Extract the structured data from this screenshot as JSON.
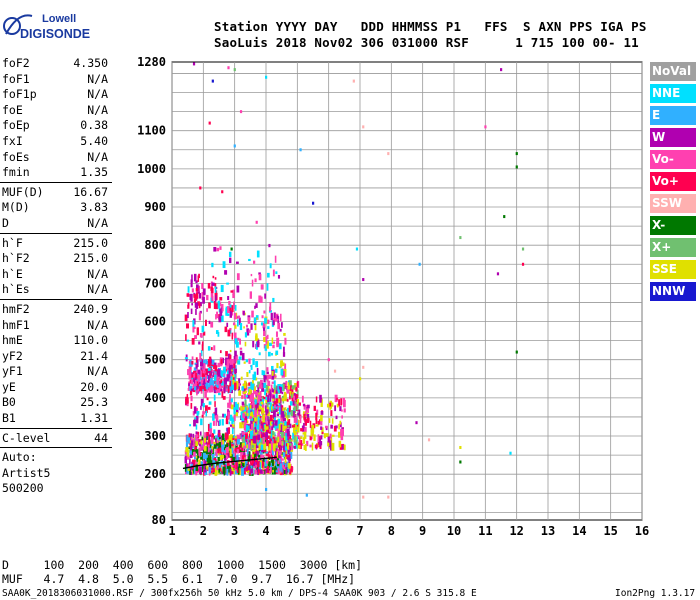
{
  "logo": {
    "top": "Lowell",
    "bottom": "DIGISONDE"
  },
  "header": {
    "line1": "Station YYYY DAY   DDD HHMMSS P1   FFS  S AXN PPS IGA PS",
    "line2": "SaoLuis 2018 Nov02 306 031000 RSF      1 715 100 00- 11"
  },
  "params": {
    "group1": [
      {
        "name": "foF2",
        "value": "4.350"
      },
      {
        "name": "foF1",
        "value": "N/A"
      },
      {
        "name": "foF1p",
        "value": "N/A"
      },
      {
        "name": "foE",
        "value": "N/A"
      },
      {
        "name": "foEp",
        "value": "0.38"
      },
      {
        "name": "fxI",
        "value": "5.40"
      },
      {
        "name": "foEs",
        "value": "N/A"
      },
      {
        "name": "fmin",
        "value": "1.35"
      }
    ],
    "group2": [
      {
        "name": "MUF(D)",
        "value": "16.67"
      },
      {
        "name": "M(D)",
        "value": "3.83"
      },
      {
        "name": "D",
        "value": "N/A"
      }
    ],
    "group3": [
      {
        "name": "h`F",
        "value": "215.0"
      },
      {
        "name": "h`F2",
        "value": "215.0"
      },
      {
        "name": "h`E",
        "value": "N/A"
      },
      {
        "name": "h`Es",
        "value": "N/A"
      }
    ],
    "group4": [
      {
        "name": "hmF2",
        "value": "240.9"
      },
      {
        "name": "hmF1",
        "value": "N/A"
      },
      {
        "name": "hmE",
        "value": "110.0"
      },
      {
        "name": "yF2",
        "value": "21.4"
      },
      {
        "name": "yF1",
        "value": "N/A"
      },
      {
        "name": "yE",
        "value": "20.0"
      },
      {
        "name": "B0",
        "value": "25.3"
      },
      {
        "name": "B1",
        "value": "1.31"
      }
    ],
    "group5": [
      {
        "name": "C-level",
        "value": "44"
      }
    ],
    "auto": [
      "Auto:",
      "Artist5",
      "500200"
    ]
  },
  "legend": [
    {
      "label": "NoVal",
      "color": "#a0a0a0"
    },
    {
      "label": "NNE",
      "color": "#00e0ff"
    },
    {
      "label": "E",
      "color": "#30b0ff"
    },
    {
      "label": "W",
      "color": "#b000b0"
    },
    {
      "label": "Vo-",
      "color": "#ff40b0"
    },
    {
      "label": "Vo+",
      "color": "#ff0050"
    },
    {
      "label": "SSW",
      "color": "#ffb0b0"
    },
    {
      "label": "X-",
      "color": "#007800"
    },
    {
      "label": "X+",
      "color": "#70c070"
    },
    {
      "label": "SSE",
      "color": "#e0e000"
    },
    {
      "label": "NNW",
      "color": "#1818d0"
    }
  ],
  "footer": {
    "d_line": "D     100  200  400  600  800  1000  1500  3000 [km]",
    "muf_line": "MUF   4.7  4.8  5.0  5.5  6.1  7.0  9.7  16.7 [MHz]",
    "file_line": "SAA0K_2018306031000.RSF / 300fx256h 50 kHz 5.0 km / DPS-4 SAA0K 903 / 2.6 S 315.8 E",
    "version": "Ion2Png 1.3.17"
  },
  "chart_data": {
    "type": "scatter",
    "xlim": [
      1,
      16
    ],
    "ylim": [
      80,
      1280
    ],
    "x_ticks": [
      1,
      2,
      3,
      4,
      5,
      6,
      7,
      8,
      9,
      10,
      11,
      12,
      13,
      14,
      15,
      16
    ],
    "y_ticks": [
      80,
      200,
      300,
      400,
      500,
      600,
      700,
      800,
      900,
      1000,
      1100,
      1280
    ],
    "grid": true,
    "legend_position": "right",
    "trace": {
      "name": "F2 trace",
      "x": [
        1.35,
        1.8,
        2.3,
        2.8,
        3.3,
        3.8,
        4.2,
        4.35
      ],
      "y": [
        215,
        222,
        228,
        232,
        236,
        240,
        243,
        245
      ]
    },
    "clusters": [
      {
        "x": [
          1.4,
          4.8
        ],
        "y": [
          205,
          300
        ],
        "n": 900,
        "colors": [
          "#ff0050",
          "#ff40b0",
          "#b000b0",
          "#007800",
          "#e0e000",
          "#30b0ff"
        ]
      },
      {
        "x": [
          3.2,
          5.0
        ],
        "y": [
          270,
          440
        ],
        "n": 600,
        "colors": [
          "#ff40b0",
          "#b000b0",
          "#e0e000",
          "#ff0050",
          "#00e0ff",
          "#70c070"
        ]
      },
      {
        "x": [
          1.5,
          3.0
        ],
        "y": [
          420,
          500
        ],
        "n": 260,
        "colors": [
          "#ff0050",
          "#b000b0",
          "#ff40b0",
          "#30b0ff"
        ]
      },
      {
        "x": [
          2.8,
          4.6
        ],
        "y": [
          320,
          620
        ],
        "n": 320,
        "colors": [
          "#ff40b0",
          "#b000b0",
          "#00e0ff",
          "#e0e000"
        ]
      },
      {
        "x": [
          1.4,
          3.0
        ],
        "y": [
          300,
          700
        ],
        "n": 220,
        "colors": [
          "#ff0050",
          "#ff40b0",
          "#b000b0",
          "#00e0ff"
        ]
      },
      {
        "x": [
          5.0,
          6.5
        ],
        "y": [
          270,
          400
        ],
        "n": 140,
        "colors": [
          "#ff0050",
          "#ff40b0",
          "#e0e000",
          "#b000b0"
        ]
      },
      {
        "x": [
          1.5,
          2.4
        ],
        "y": [
          640,
          720
        ],
        "n": 40,
        "colors": [
          "#ff0050",
          "#b000b0"
        ]
      },
      {
        "x": [
          2.2,
          4.4
        ],
        "y": [
          600,
          800
        ],
        "n": 60,
        "colors": [
          "#ff40b0",
          "#b000b0",
          "#00e0ff"
        ]
      }
    ],
    "sparse_points": [
      {
        "x": 1.7,
        "y": 1275,
        "c": "#b000b0"
      },
      {
        "x": 2.3,
        "y": 1230,
        "c": "#1818d0"
      },
      {
        "x": 2.8,
        "y": 1265,
        "c": "#ff40b0"
      },
      {
        "x": 3.0,
        "y": 1260,
        "c": "#70c070"
      },
      {
        "x": 2.2,
        "y": 1120,
        "c": "#ff0050"
      },
      {
        "x": 3.0,
        "y": 1060,
        "c": "#30b0ff"
      },
      {
        "x": 4.0,
        "y": 1240,
        "c": "#00e0ff"
      },
      {
        "x": 5.1,
        "y": 1050,
        "c": "#30b0ff"
      },
      {
        "x": 5.5,
        "y": 910,
        "c": "#1818d0"
      },
      {
        "x": 6.8,
        "y": 1230,
        "c": "#ffb0b0"
      },
      {
        "x": 7.1,
        "y": 1110,
        "c": "#ffb0b0"
      },
      {
        "x": 7.9,
        "y": 1040,
        "c": "#ffb0b0"
      },
      {
        "x": 7.1,
        "y": 710,
        "c": "#b000b0"
      },
      {
        "x": 6.9,
        "y": 790,
        "c": "#00e0ff"
      },
      {
        "x": 8.9,
        "y": 750,
        "c": "#30b0ff"
      },
      {
        "x": 10.2,
        "y": 820,
        "c": "#70c070"
      },
      {
        "x": 11.5,
        "y": 1260,
        "c": "#b000b0"
      },
      {
        "x": 11.0,
        "y": 1110,
        "c": "#ff40b0"
      },
      {
        "x": 12.0,
        "y": 1040,
        "c": "#007800"
      },
      {
        "x": 12.0,
        "y": 1005,
        "c": "#007800"
      },
      {
        "x": 11.6,
        "y": 875,
        "c": "#007800"
      },
      {
        "x": 12.2,
        "y": 790,
        "c": "#70c070"
      },
      {
        "x": 12.2,
        "y": 750,
        "c": "#ff0050"
      },
      {
        "x": 11.4,
        "y": 725,
        "c": "#b000b0"
      },
      {
        "x": 12.0,
        "y": 520,
        "c": "#007800"
      },
      {
        "x": 8.8,
        "y": 335,
        "c": "#b000b0"
      },
      {
        "x": 9.2,
        "y": 290,
        "c": "#ffb0b0"
      },
      {
        "x": 10.2,
        "y": 270,
        "c": "#e0e000"
      },
      {
        "x": 10.2,
        "y": 232,
        "c": "#007800"
      },
      {
        "x": 11.8,
        "y": 255,
        "c": "#00e0ff"
      },
      {
        "x": 4.0,
        "y": 160,
        "c": "#30b0ff"
      },
      {
        "x": 5.3,
        "y": 145,
        "c": "#30b0ff"
      },
      {
        "x": 7.1,
        "y": 140,
        "c": "#ffb0b0"
      },
      {
        "x": 7.9,
        "y": 140,
        "c": "#ffb0b0"
      },
      {
        "x": 6.2,
        "y": 470,
        "c": "#ffb0b0"
      },
      {
        "x": 7.0,
        "y": 450,
        "c": "#e0e000"
      },
      {
        "x": 7.1,
        "y": 480,
        "c": "#ffb0b0"
      },
      {
        "x": 6.0,
        "y": 500,
        "c": "#ff40b0"
      },
      {
        "x": 3.2,
        "y": 1150,
        "c": "#ff40b0"
      },
      {
        "x": 1.9,
        "y": 950,
        "c": "#ff0050"
      },
      {
        "x": 2.6,
        "y": 940,
        "c": "#ff0050"
      },
      {
        "x": 3.7,
        "y": 860,
        "c": "#ff40b0"
      },
      {
        "x": 2.9,
        "y": 790,
        "c": "#007800"
      }
    ]
  }
}
